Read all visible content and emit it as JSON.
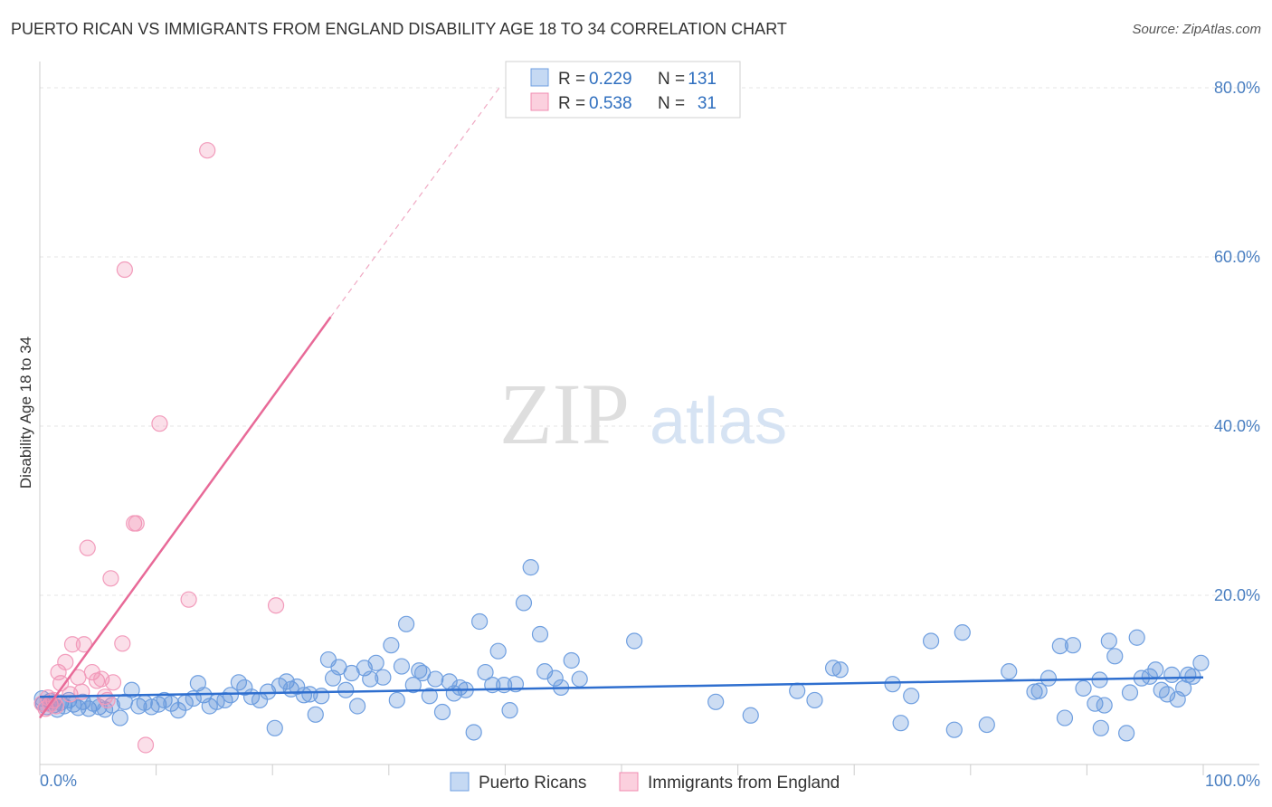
{
  "title": "PUERTO RICAN VS IMMIGRANTS FROM ENGLAND DISABILITY AGE 18 TO 34 CORRELATION CHART",
  "source": "Source: ZipAtlas.com",
  "watermark": {
    "zip": "ZIP",
    "atlas": "atlas"
  },
  "chart_data": {
    "type": "scatter",
    "ylabel": "Disability Age 18 to 34",
    "xlim": [
      0,
      100
    ],
    "ylim": [
      0,
      82
    ],
    "x_tick_labels": [
      "0.0%",
      "100.0%"
    ],
    "y_ticks": [
      {
        "value": 20,
        "label": "20.0%"
      },
      {
        "value": 40,
        "label": "40.0%"
      },
      {
        "value": 60,
        "label": "60.0%"
      },
      {
        "value": 80,
        "label": "80.0%"
      }
    ],
    "legend_stats": [
      {
        "r_label": "R =",
        "r_value": "0.229",
        "n_label": "N =",
        "n_value": "131"
      },
      {
        "r_label": "R =",
        "r_value": "0.538",
        "n_label": "N =",
        "n_value": "31"
      }
    ],
    "series": [
      {
        "name": "Puerto Ricans",
        "color": "#5b8fd6",
        "trend": [
          [
            0,
            8.0
          ],
          [
            100,
            10.3
          ]
        ],
        "points": [
          [
            0.3,
            7.2
          ],
          [
            0.6,
            6.8
          ],
          [
            0.9,
            7.5
          ],
          [
            1.2,
            7.0
          ],
          [
            1.5,
            6.5
          ],
          [
            1.8,
            7.3
          ],
          [
            2.1,
            6.9
          ],
          [
            2.5,
            7.6
          ],
          [
            2.9,
            7.1
          ],
          [
            3.3,
            6.7
          ],
          [
            3.7,
            7.4
          ],
          [
            4.2,
            6.6
          ],
          [
            4.6,
            7.2
          ],
          [
            5.1,
            6.8
          ],
          [
            5.6,
            6.5
          ],
          [
            6.2,
            7.0
          ],
          [
            6.9,
            5.5
          ],
          [
            7.3,
            7.4
          ],
          [
            7.9,
            8.8
          ],
          [
            8.5,
            6.9
          ],
          [
            9.0,
            7.3
          ],
          [
            9.6,
            6.8
          ],
          [
            10.2,
            7.1
          ],
          [
            10.7,
            7.6
          ],
          [
            11.3,
            7.2
          ],
          [
            11.9,
            6.4
          ],
          [
            12.5,
            7.3
          ],
          [
            13.2,
            7.8
          ],
          [
            13.6,
            9.6
          ],
          [
            14.1,
            8.2
          ],
          [
            14.6,
            6.9
          ],
          [
            15.2,
            7.4
          ],
          [
            15.9,
            7.6
          ],
          [
            16.4,
            8.2
          ],
          [
            17.1,
            9.7
          ],
          [
            17.6,
            9.1
          ],
          [
            18.2,
            8.0
          ],
          [
            18.9,
            7.6
          ],
          [
            19.6,
            8.6
          ],
          [
            20.2,
            4.3
          ],
          [
            20.6,
            9.3
          ],
          [
            21.2,
            9.8
          ],
          [
            21.6,
            8.9
          ],
          [
            22.1,
            9.2
          ],
          [
            22.7,
            8.2
          ],
          [
            23.2,
            8.3
          ],
          [
            23.7,
            5.9
          ],
          [
            24.2,
            8.1
          ],
          [
            24.8,
            12.4
          ],
          [
            25.2,
            10.2
          ],
          [
            25.7,
            11.5
          ],
          [
            26.3,
            8.8
          ],
          [
            26.8,
            10.8
          ],
          [
            27.3,
            6.9
          ],
          [
            27.9,
            11.4
          ],
          [
            28.4,
            10.1
          ],
          [
            28.9,
            12.0
          ],
          [
            29.5,
            10.3
          ],
          [
            30.2,
            14.1
          ],
          [
            30.7,
            7.6
          ],
          [
            31.1,
            11.6
          ],
          [
            31.5,
            16.6
          ],
          [
            32.1,
            9.4
          ],
          [
            32.6,
            11.1
          ],
          [
            32.9,
            10.8
          ],
          [
            33.5,
            8.1
          ],
          [
            34.0,
            10.1
          ],
          [
            34.6,
            6.2
          ],
          [
            35.2,
            9.8
          ],
          [
            35.6,
            8.4
          ],
          [
            36.1,
            9.1
          ],
          [
            36.6,
            8.8
          ],
          [
            37.3,
            3.8
          ],
          [
            37.8,
            16.9
          ],
          [
            38.3,
            10.9
          ],
          [
            38.9,
            9.4
          ],
          [
            39.4,
            13.4
          ],
          [
            39.9,
            9.4
          ],
          [
            40.4,
            6.4
          ],
          [
            40.9,
            9.5
          ],
          [
            41.6,
            19.1
          ],
          [
            42.2,
            23.3
          ],
          [
            43.0,
            15.4
          ],
          [
            43.4,
            11.0
          ],
          [
            44.3,
            10.2
          ],
          [
            44.8,
            9.1
          ],
          [
            45.7,
            12.3
          ],
          [
            46.4,
            10.1
          ],
          [
            51.1,
            14.6
          ],
          [
            58.1,
            7.4
          ],
          [
            61.1,
            5.8
          ],
          [
            65.1,
            8.7
          ],
          [
            66.6,
            7.6
          ],
          [
            68.2,
            11.4
          ],
          [
            68.8,
            11.2
          ],
          [
            73.3,
            9.5
          ],
          [
            74.0,
            4.9
          ],
          [
            74.9,
            8.1
          ],
          [
            76.6,
            14.6
          ],
          [
            78.6,
            4.1
          ],
          [
            79.3,
            15.6
          ],
          [
            81.4,
            4.7
          ],
          [
            83.3,
            11.0
          ],
          [
            85.5,
            8.6
          ],
          [
            85.9,
            8.7
          ],
          [
            86.7,
            10.2
          ],
          [
            87.7,
            14.0
          ],
          [
            88.1,
            5.5
          ],
          [
            88.8,
            14.1
          ],
          [
            89.7,
            9.0
          ],
          [
            90.7,
            7.2
          ],
          [
            91.1,
            10.0
          ],
          [
            91.2,
            4.3
          ],
          [
            91.5,
            7.0
          ],
          [
            91.9,
            14.6
          ],
          [
            92.4,
            12.8
          ],
          [
            93.4,
            3.7
          ],
          [
            93.7,
            8.5
          ],
          [
            94.3,
            15.0
          ],
          [
            94.7,
            10.2
          ],
          [
            95.4,
            10.4
          ],
          [
            95.9,
            11.2
          ],
          [
            96.4,
            8.8
          ],
          [
            96.9,
            8.3
          ],
          [
            97.3,
            10.6
          ],
          [
            97.8,
            7.7
          ],
          [
            98.3,
            9.0
          ],
          [
            98.7,
            10.6
          ],
          [
            99.1,
            10.4
          ],
          [
            99.8,
            12.0
          ],
          [
            0.2,
            7.8
          ]
        ]
      },
      {
        "name": "Immigrants from England",
        "color": "#f08bb0",
        "trend": [
          [
            0,
            5.5
          ],
          [
            25.0,
            52.9
          ]
        ],
        "trend_dashed": [
          [
            25.0,
            52.9
          ],
          [
            39.5,
            80.0
          ]
        ],
        "points": [
          [
            0.2,
            7.2
          ],
          [
            0.5,
            6.6
          ],
          [
            0.7,
            7.9
          ],
          [
            0.9,
            7.1
          ],
          [
            1.2,
            7.6
          ],
          [
            1.4,
            6.9
          ],
          [
            1.8,
            9.6
          ],
          [
            1.6,
            10.9
          ],
          [
            2.2,
            12.1
          ],
          [
            2.6,
            8.3
          ],
          [
            2.8,
            14.2
          ],
          [
            3.3,
            10.3
          ],
          [
            3.6,
            8.6
          ],
          [
            3.8,
            14.2
          ],
          [
            4.1,
            25.6
          ],
          [
            4.5,
            10.9
          ],
          [
            4.9,
            9.9
          ],
          [
            5.3,
            10.1
          ],
          [
            5.6,
            8.0
          ],
          [
            5.8,
            7.6
          ],
          [
            6.1,
            22.0
          ],
          [
            6.3,
            9.7
          ],
          [
            7.1,
            14.3
          ],
          [
            7.3,
            58.5
          ],
          [
            8.1,
            28.5
          ],
          [
            8.3,
            28.5
          ],
          [
            9.1,
            2.3
          ],
          [
            10.3,
            40.3
          ],
          [
            12.8,
            19.5
          ],
          [
            14.4,
            72.6
          ],
          [
            20.3,
            18.8
          ]
        ]
      }
    ]
  },
  "legend": [
    {
      "label": "Puerto Ricans",
      "color": "#5b8fd6"
    },
    {
      "label": "Immigrants from England",
      "color": "#f08bb0"
    }
  ]
}
